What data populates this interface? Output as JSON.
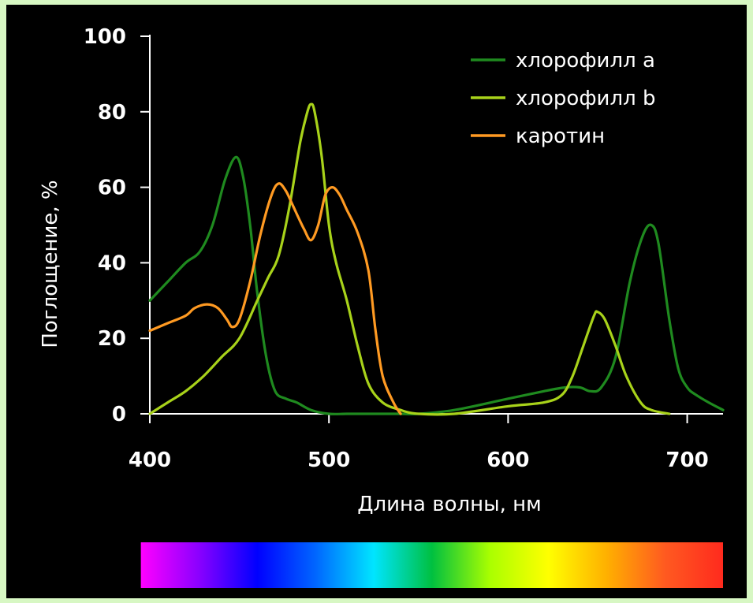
{
  "chart_data": {
    "type": "line",
    "xlabel": "Длина волны, нм",
    "ylabel": "Поглощение, %",
    "xlim": [
      400,
      720
    ],
    "ylim": [
      0,
      100
    ],
    "xticks": [
      400,
      500,
      600,
      700
    ],
    "yticks": [
      0,
      20,
      40,
      60,
      80,
      100
    ],
    "grid": false,
    "legend_position": "top-right",
    "background_color": "#000000",
    "spectrum_bar": {
      "x_range": [
        395,
        720
      ],
      "colors": [
        "#ff00ff",
        "#8a00ff",
        "#0000ff",
        "#0066ff",
        "#00e5ff",
        "#00c040",
        "#aaff00",
        "#ffff00",
        "#ffb000",
        "#ff5a20",
        "#ff2a1e"
      ]
    },
    "series": [
      {
        "name": "хлорофилл a",
        "color": "#1f8a1f",
        "x": [
          400,
          410,
          420,
          428,
          435,
          442,
          448,
          452,
          456,
          460,
          465,
          470,
          476,
          482,
          490,
          500,
          510,
          520,
          530,
          540,
          550,
          570,
          600,
          620,
          632,
          640,
          646,
          652,
          660,
          668,
          675,
          680,
          684,
          690,
          695,
          700,
          705,
          712,
          720
        ],
        "y": [
          30,
          35,
          40,
          43,
          50,
          62,
          68,
          63,
          50,
          32,
          15,
          6,
          4,
          3,
          1,
          0,
          0,
          0,
          0,
          0,
          0,
          1,
          4,
          6,
          7,
          7,
          6,
          7,
          15,
          35,
          47,
          50,
          45,
          25,
          12,
          7,
          5,
          3,
          1
        ]
      },
      {
        "name": "хлорофилл b",
        "color": "#a8d21a",
        "x": [
          400,
          410,
          420,
          430,
          440,
          450,
          460,
          466,
          472,
          478,
          484,
          488,
          490,
          492,
          496,
          500,
          504,
          510,
          516,
          522,
          530,
          540,
          550,
          570,
          600,
          620,
          630,
          636,
          642,
          648,
          650,
          654,
          660,
          666,
          674,
          680,
          690
        ],
        "y": [
          0,
          3,
          6,
          10,
          15,
          20,
          30,
          36,
          42,
          55,
          72,
          80,
          82,
          80,
          68,
          50,
          40,
          30,
          18,
          8,
          3,
          1,
          0,
          0,
          2,
          3,
          5,
          10,
          18,
          26,
          27,
          25,
          18,
          10,
          3,
          1,
          0
        ]
      },
      {
        "name": "каротин",
        "color": "#ff9a22",
        "x": [
          400,
          410,
          420,
          425,
          432,
          438,
          443,
          446,
          450,
          456,
          462,
          468,
          472,
          476,
          480,
          486,
          490,
          494,
          498,
          502,
          506,
          510,
          516,
          522,
          526,
          530,
          536,
          540
        ],
        "y": [
          22,
          24,
          26,
          28,
          29,
          28,
          25,
          23,
          25,
          35,
          48,
          58,
          61,
          59,
          55,
          49,
          46,
          50,
          58,
          60,
          58,
          54,
          48,
          38,
          22,
          10,
          3,
          0
        ]
      }
    ]
  }
}
